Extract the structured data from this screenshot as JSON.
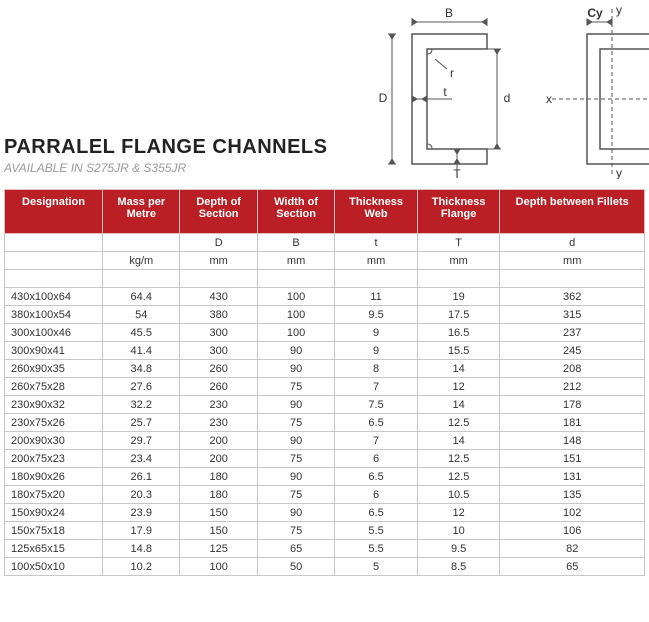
{
  "title": "PARRALEL FLANGE CHANNELS",
  "subtitle": "AVAILABLE IN S275JR & S355JR",
  "columns": [
    {
      "header": "Designation",
      "symbol": "",
      "unit": ""
    },
    {
      "header": "Mass per Metre",
      "symbol": "",
      "unit": "kg/m"
    },
    {
      "header": "Depth of Section",
      "symbol": "D",
      "unit": "mm"
    },
    {
      "header": "Width of Section",
      "symbol": "B",
      "unit": "mm"
    },
    {
      "header": "Thickness Web",
      "symbol": "t",
      "unit": "mm"
    },
    {
      "header": "Thickness Flange",
      "symbol": "T",
      "unit": "mm"
    },
    {
      "header": "Depth between Fillets",
      "symbol": "d",
      "unit": "mm"
    }
  ],
  "rows": [
    [
      "430x100x64",
      "64.4",
      "430",
      "100",
      "11",
      "19",
      "362"
    ],
    [
      "380x100x54",
      "54",
      "380",
      "100",
      "9.5",
      "17.5",
      "315"
    ],
    [
      "300x100x46",
      "45.5",
      "300",
      "100",
      "9",
      "16.5",
      "237"
    ],
    [
      "300x90x41",
      "41.4",
      "300",
      "90",
      "9",
      "15.5",
      "245"
    ],
    [
      "260x90x35",
      "34.8",
      "260",
      "90",
      "8",
      "14",
      "208"
    ],
    [
      "260x75x28",
      "27.6",
      "260",
      "75",
      "7",
      "12",
      "212"
    ],
    [
      "230x90x32",
      "32.2",
      "230",
      "90",
      "7.5",
      "14",
      "178"
    ],
    [
      "230x75x26",
      "25.7",
      "230",
      "75",
      "6.5",
      "12.5",
      "181"
    ],
    [
      "200x90x30",
      "29.7",
      "200",
      "90",
      "7",
      "14",
      "148"
    ],
    [
      "200x75x23",
      "23.4",
      "200",
      "75",
      "6",
      "12.5",
      "151"
    ],
    [
      "180x90x26",
      "26.1",
      "180",
      "90",
      "6.5",
      "12.5",
      "131"
    ],
    [
      "180x75x20",
      "20.3",
      "180",
      "75",
      "6",
      "10.5",
      "135"
    ],
    [
      "150x90x24",
      "23.9",
      "150",
      "90",
      "6.5",
      "12",
      "102"
    ],
    [
      "150x75x18",
      "17.9",
      "150",
      "75",
      "5.5",
      "10",
      "106"
    ],
    [
      "125x65x15",
      "14.8",
      "125",
      "65",
      "5.5",
      "9.5",
      "82"
    ],
    [
      "100x50x10",
      "10.2",
      "100",
      "50",
      "5",
      "8.5",
      "65"
    ]
  ],
  "header_bg": "#b91f24",
  "header_fg": "#ffffff",
  "cell_border": "#c7c7c7",
  "text_color": "#333333",
  "diagram": {
    "stroke": "#555555",
    "fill": "#ffffff",
    "labels_left": {
      "B": "B",
      "D": "D",
      "r": "r",
      "t": "t",
      "d": "d",
      "T": "T"
    },
    "labels_right": {
      "x": "x",
      "y": "y",
      "Cy": "Cy"
    }
  }
}
